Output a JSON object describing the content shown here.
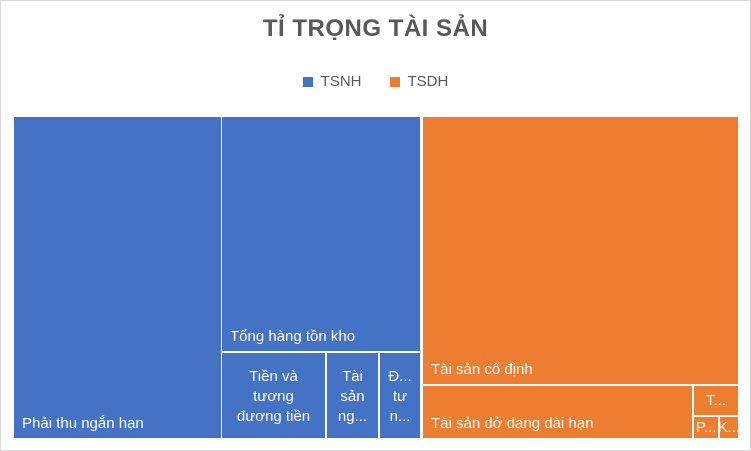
{
  "chart_data": {
    "type": "treemap",
    "title": "TỈ TRỌNG TÀI SẢN",
    "legend": [
      {
        "name": "TSNH",
        "color": "#4472c4"
      },
      {
        "name": "TSDH",
        "color": "#ed7d31"
      }
    ],
    "legend_position": "top",
    "groups": [
      {
        "name": "TSNH",
        "color": "#4472c4",
        "items": [
          {
            "label": "Phải thu ngắn hạn",
            "share": 0.2846
          },
          {
            "label": "Tổng hàng tồn kho",
            "share": 0.187
          },
          {
            "label": "Tiền và tương đương tiền",
            "share": 0.046
          },
          {
            "label": "Tài sản ng...",
            "share": 0.025
          },
          {
            "label": "Đ... tư n...",
            "share": 0.0183
          }
        ]
      },
      {
        "name": "TSDH",
        "color": "#ed7d31",
        "items": [
          {
            "label": "Tài sản cố định",
            "share": 0.367
          },
          {
            "label": "Tài sản dở dang dài hạn",
            "share": 0.0633
          },
          {
            "label": "T...",
            "share": 0.0036
          },
          {
            "label": "P...",
            "share": 0.002
          },
          {
            "label": "K...",
            "share": 0.0012
          }
        ]
      }
    ]
  }
}
